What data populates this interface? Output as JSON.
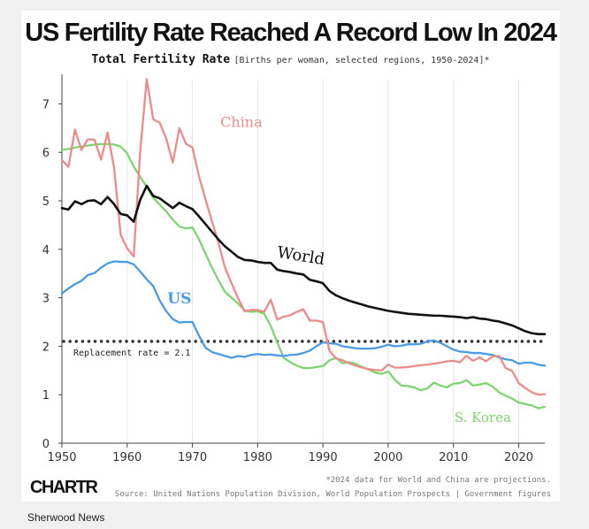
{
  "header": {
    "title": "US Fertility Rate Reached A Record Low In 2024",
    "subtitle": "Total Fertility Rate",
    "subtitle_note": "[Births per woman, selected regions, 1950-2024]*"
  },
  "footer": {
    "note": "*2024 data for World and China are projections.",
    "source": "Source: United Nations Population Division, World Population Prospects | Government figures",
    "logo": "CHARTR",
    "publisher": "Sherwood News"
  },
  "chart_data": {
    "type": "line",
    "xlabel": "",
    "ylabel": "",
    "xlim": [
      1950,
      2024
    ],
    "ylim": [
      0,
      7.5
    ],
    "xticks": [
      1950,
      1960,
      1970,
      1980,
      1990,
      2000,
      2010,
      2020
    ],
    "yticks": [
      0,
      1,
      2,
      3,
      4,
      5,
      6,
      7
    ],
    "grid": "vertical",
    "annotations": [
      {
        "text": "Replacement rate = 2.1",
        "value": 2.1,
        "style": "dotted"
      }
    ],
    "series": [
      {
        "name": "China",
        "label": "China",
        "color": "#ef8a8a",
        "x": [
          1950,
          1951,
          1952,
          1953,
          1954,
          1955,
          1956,
          1957,
          1958,
          1959,
          1960,
          1961,
          1962,
          1963,
          1964,
          1965,
          1966,
          1967,
          1968,
          1969,
          1970,
          1971,
          1972,
          1973,
          1974,
          1975,
          1976,
          1977,
          1978,
          1979,
          1980,
          1981,
          1982,
          1983,
          1984,
          1985,
          1986,
          1987,
          1988,
          1989,
          1990,
          1991,
          1992,
          1993,
          1994,
          1995,
          1996,
          1997,
          1998,
          1999,
          2000,
          2001,
          2002,
          2003,
          2004,
          2005,
          2006,
          2007,
          2008,
          2009,
          2010,
          2011,
          2012,
          2013,
          2014,
          2015,
          2016,
          2017,
          2018,
          2019,
          2020,
          2021,
          2022,
          2023,
          2024
        ],
        "values": [
          5.84,
          5.7,
          6.47,
          6.05,
          6.27,
          6.26,
          5.85,
          6.41,
          5.68,
          4.3,
          4.02,
          3.85,
          6.02,
          7.51,
          6.68,
          6.61,
          6.28,
          5.79,
          6.5,
          6.18,
          6.1,
          5.51,
          5.03,
          4.58,
          4.13,
          3.62,
          3.3,
          2.99,
          2.72,
          2.75,
          2.75,
          2.71,
          2.96,
          2.55,
          2.61,
          2.64,
          2.71,
          2.76,
          2.53,
          2.53,
          2.5,
          1.91,
          1.75,
          1.71,
          1.65,
          1.6,
          1.56,
          1.53,
          1.51,
          1.5,
          1.62,
          1.56,
          1.56,
          1.57,
          1.59,
          1.61,
          1.62,
          1.64,
          1.66,
          1.69,
          1.7,
          1.67,
          1.8,
          1.7,
          1.77,
          1.69,
          1.79,
          1.8,
          1.55,
          1.49,
          1.24,
          1.14,
          1.05,
          1.0,
          1.01
        ]
      },
      {
        "name": "World",
        "label": "World",
        "color": "#111111",
        "x": [
          1950,
          1951,
          1952,
          1953,
          1954,
          1955,
          1956,
          1957,
          1958,
          1959,
          1960,
          1961,
          1962,
          1963,
          1964,
          1965,
          1966,
          1967,
          1968,
          1969,
          1970,
          1971,
          1972,
          1973,
          1974,
          1975,
          1976,
          1977,
          1978,
          1979,
          1980,
          1981,
          1982,
          1983,
          1984,
          1985,
          1986,
          1987,
          1988,
          1989,
          1990,
          1991,
          1992,
          1993,
          1994,
          1995,
          1996,
          1997,
          1998,
          1999,
          2000,
          2001,
          2002,
          2003,
          2004,
          2005,
          2006,
          2007,
          2008,
          2009,
          2010,
          2011,
          2012,
          2013,
          2014,
          2015,
          2016,
          2017,
          2018,
          2019,
          2020,
          2021,
          2022,
          2023,
          2024
        ],
        "values": [
          4.85,
          4.82,
          4.99,
          4.93,
          5.0,
          5.01,
          4.93,
          5.08,
          4.93,
          4.73,
          4.7,
          4.57,
          5.02,
          5.31,
          5.1,
          5.05,
          4.95,
          4.85,
          4.96,
          4.89,
          4.83,
          4.68,
          4.52,
          4.36,
          4.2,
          4.06,
          3.95,
          3.84,
          3.78,
          3.77,
          3.74,
          3.72,
          3.72,
          3.58,
          3.55,
          3.53,
          3.5,
          3.48,
          3.37,
          3.34,
          3.3,
          3.14,
          3.05,
          2.99,
          2.94,
          2.9,
          2.86,
          2.82,
          2.79,
          2.76,
          2.73,
          2.71,
          2.69,
          2.67,
          2.66,
          2.65,
          2.64,
          2.63,
          2.63,
          2.62,
          2.61,
          2.6,
          2.58,
          2.6,
          2.57,
          2.56,
          2.53,
          2.51,
          2.47,
          2.43,
          2.37,
          2.31,
          2.27,
          2.25,
          2.25
        ]
      },
      {
        "name": "US",
        "label": "US",
        "color": "#4a9ae6",
        "x": [
          1950,
          1951,
          1952,
          1953,
          1954,
          1955,
          1956,
          1957,
          1958,
          1959,
          1960,
          1961,
          1962,
          1963,
          1964,
          1965,
          1966,
          1967,
          1968,
          1969,
          1970,
          1971,
          1972,
          1973,
          1974,
          1975,
          1976,
          1977,
          1978,
          1979,
          1980,
          1981,
          1982,
          1983,
          1984,
          1985,
          1986,
          1987,
          1988,
          1989,
          1990,
          1991,
          1992,
          1993,
          1994,
          1995,
          1996,
          1997,
          1998,
          1999,
          2000,
          2001,
          2002,
          2003,
          2004,
          2005,
          2006,
          2007,
          2008,
          2009,
          2010,
          2011,
          2012,
          2013,
          2014,
          2015,
          2016,
          2017,
          2018,
          2019,
          2020,
          2021,
          2022,
          2023,
          2024
        ],
        "values": [
          3.09,
          3.19,
          3.28,
          3.35,
          3.47,
          3.51,
          3.62,
          3.71,
          3.75,
          3.74,
          3.74,
          3.69,
          3.54,
          3.38,
          3.24,
          2.94,
          2.72,
          2.56,
          2.49,
          2.5,
          2.5,
          2.22,
          1.97,
          1.88,
          1.84,
          1.8,
          1.76,
          1.8,
          1.78,
          1.82,
          1.84,
          1.82,
          1.83,
          1.81,
          1.8,
          1.82,
          1.83,
          1.86,
          1.91,
          2.0,
          2.08,
          2.06,
          2.05,
          2.0,
          1.98,
          1.96,
          1.95,
          1.95,
          1.96,
          1.99,
          2.03,
          2.0,
          2.01,
          2.04,
          2.04,
          2.05,
          2.1,
          2.12,
          2.07,
          2.0,
          1.93,
          1.89,
          1.88,
          1.86,
          1.86,
          1.84,
          1.82,
          1.77,
          1.73,
          1.71,
          1.64,
          1.66,
          1.66,
          1.62,
          1.6
        ]
      },
      {
        "name": "S. Korea",
        "label": "S. Korea",
        "color": "#7ed56f",
        "x": [
          1950,
          1951,
          1952,
          1953,
          1954,
          1955,
          1956,
          1957,
          1958,
          1959,
          1960,
          1961,
          1962,
          1963,
          1964,
          1965,
          1966,
          1967,
          1968,
          1969,
          1970,
          1971,
          1972,
          1973,
          1974,
          1975,
          1976,
          1977,
          1978,
          1979,
          1980,
          1981,
          1982,
          1983,
          1984,
          1985,
          1986,
          1987,
          1988,
          1989,
          1990,
          1991,
          1992,
          1993,
          1994,
          1995,
          1996,
          1997,
          1998,
          1999,
          2000,
          2001,
          2002,
          2003,
          2004,
          2005,
          2006,
          2007,
          2008,
          2009,
          2010,
          2011,
          2012,
          2013,
          2014,
          2015,
          2016,
          2017,
          2018,
          2019,
          2020,
          2021,
          2022,
          2023,
          2024
        ],
        "values": [
          6.05,
          6.07,
          6.1,
          6.12,
          6.14,
          6.16,
          6.17,
          6.17,
          6.16,
          6.12,
          5.98,
          5.71,
          5.49,
          5.29,
          5.06,
          4.92,
          4.78,
          4.61,
          4.47,
          4.43,
          4.45,
          4.21,
          3.91,
          3.62,
          3.36,
          3.12,
          3.0,
          2.88,
          2.74,
          2.71,
          2.72,
          2.67,
          2.42,
          2.08,
          1.76,
          1.67,
          1.6,
          1.55,
          1.55,
          1.57,
          1.59,
          1.71,
          1.76,
          1.65,
          1.67,
          1.64,
          1.57,
          1.52,
          1.46,
          1.43,
          1.48,
          1.31,
          1.19,
          1.18,
          1.15,
          1.09,
          1.13,
          1.25,
          1.19,
          1.15,
          1.23,
          1.24,
          1.3,
          1.19,
          1.21,
          1.24,
          1.17,
          1.05,
          0.98,
          0.92,
          0.84,
          0.81,
          0.78,
          0.72,
          0.75
        ]
      }
    ]
  }
}
